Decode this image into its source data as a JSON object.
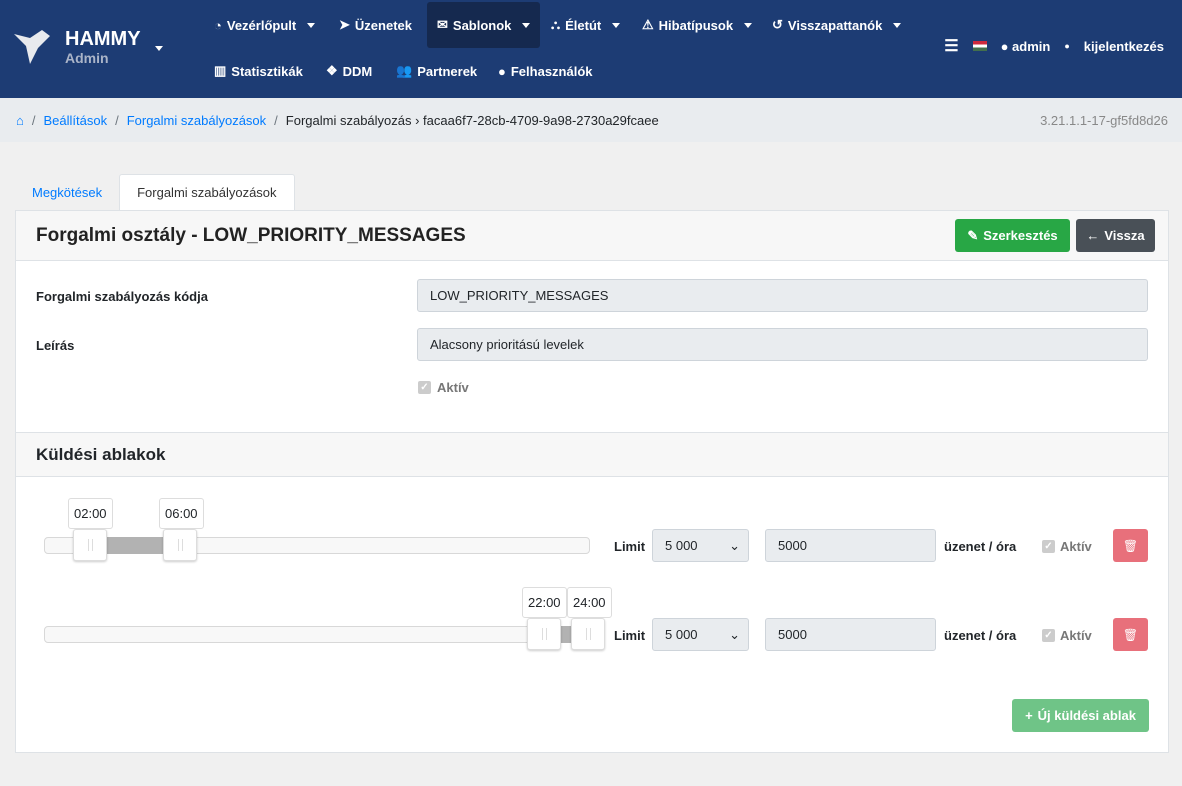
{
  "brand": {
    "title": "HAMMY",
    "subtitle": "Admin"
  },
  "nav": {
    "row1": [
      {
        "label": "Vezérlőpult",
        "icon": "dashboard-icon",
        "dropdown": true
      },
      {
        "label": "Üzenetek",
        "icon": "paper-plane-icon",
        "dropdown": false
      },
      {
        "label": "Sablonok",
        "icon": "envelope-icon",
        "dropdown": true,
        "active": true
      },
      {
        "label": "Életút",
        "icon": "binoculars-icon",
        "dropdown": true
      },
      {
        "label": "Hibatípusok",
        "icon": "warning-icon",
        "dropdown": true
      },
      {
        "label": "Visszapattanók",
        "icon": "undo-icon",
        "dropdown": true
      }
    ],
    "row2": [
      {
        "label": "Statisztikák",
        "icon": "bar-chart-icon"
      },
      {
        "label": "DDM",
        "icon": "cubes-icon"
      },
      {
        "label": "Partnerek",
        "icon": "users-icon"
      },
      {
        "label": "Felhasználók",
        "icon": "user-icon"
      }
    ],
    "user": "admin",
    "logout": "kijelentkezés"
  },
  "breadcrumb": {
    "items": [
      "Beállítások",
      "Forgalmi szabályozások"
    ],
    "current": "Forgalmi szabályozás › facaa6f7-28cb-4709-9a98-2730a29fcaee",
    "version": "3.21.1.1-17-gf5fd8d26"
  },
  "tabs": [
    "Megkötések",
    "Forgalmi szabályozások"
  ],
  "card": {
    "title": "Forgalmi osztály - LOW_PRIORITY_MESSAGES",
    "edit": "Szerkesztés",
    "back": "Vissza",
    "code_label": "Forgalmi szabályozás kódja",
    "code_value": "LOW_PRIORITY_MESSAGES",
    "desc_label": "Leírás",
    "desc_value": "Alacsony prioritású levelek",
    "active_label": "Aktív",
    "active": true
  },
  "windows": {
    "title": "Küldési ablakok",
    "limit_label": "Limit",
    "unit": "üzenet / óra",
    "active_label": "Aktív",
    "add": "Új küldési ablak",
    "items": [
      {
        "from": "02:00",
        "to": "06:00",
        "limit_select": "5 000",
        "limit_value": "5000",
        "active": true
      },
      {
        "from": "22:00",
        "to": "24:00",
        "limit_select": "5 000",
        "limit_value": "5000",
        "active": true
      }
    ]
  },
  "colors": {
    "navbar": "#1d3c74",
    "success": "#28a745",
    "secondary": "#495057",
    "danger": "#e8707b"
  }
}
